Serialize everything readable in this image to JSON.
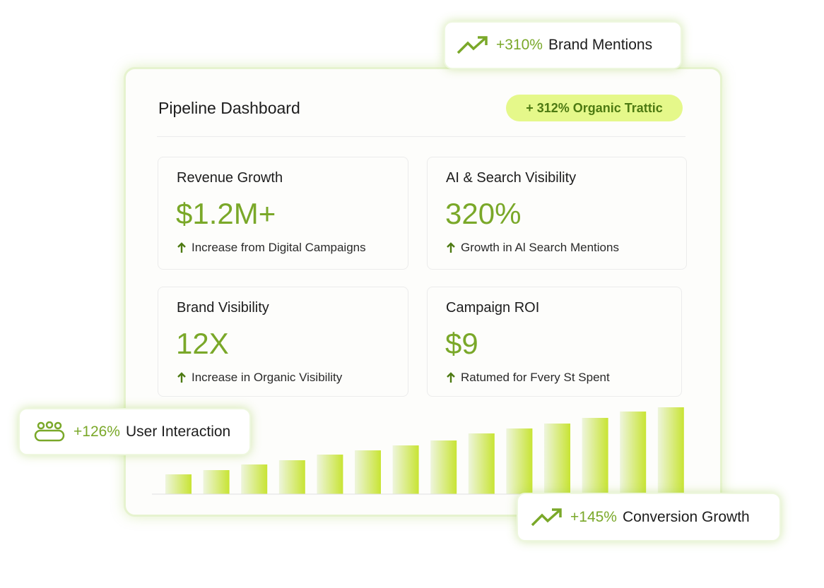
{
  "dashboard": {
    "title": "Pipeline Dashboard",
    "pill": "+ 312% Organic Trattic",
    "cards": [
      {
        "title": "Revenue Growth",
        "value": "$1.2M+",
        "note": "Increase from Digital Campaigns"
      },
      {
        "title": "AI & Search Visibility",
        "value": "320%",
        "note": "Growth in Al Search Mentions"
      },
      {
        "title": "Brand Visibility",
        "value": "12X",
        "note": "Increase in Organic Visibility"
      },
      {
        "title": "Campaign ROI",
        "value": "$9",
        "note": "Ratumed for Fvery St Spent"
      }
    ]
  },
  "badges": [
    {
      "value": "+310%",
      "label": "Brand Mentions"
    },
    {
      "value": "+126%",
      "label": "User Interaction"
    },
    {
      "value": "+145%",
      "label": "Conversion Growth"
    }
  ]
}
